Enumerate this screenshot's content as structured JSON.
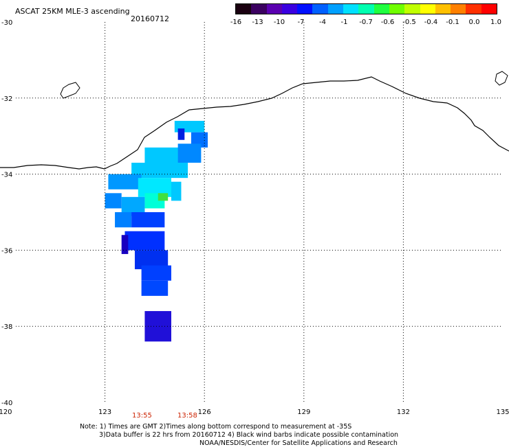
{
  "title": "ASCAT 25KM MLE-3 ascending",
  "date": "20160712",
  "colorbar": {
    "labels": [
      "-16",
      "-13",
      "-10",
      "-7",
      "-4",
      "-1",
      "-0.7",
      "-0.6",
      "-0.5",
      "-0.4",
      "-0.1",
      "0.0",
      "1.0"
    ],
    "colors": [
      "#1a0010",
      "#3b0060",
      "#5a00b0",
      "#3a00e0",
      "#0010ff",
      "#0060ff",
      "#00a0ff",
      "#00e0ff",
      "#00ffb0",
      "#20ff40",
      "#70ff00",
      "#c0ff00",
      "#ffff00",
      "#ffc000",
      "#ff8000",
      "#ff3000",
      "#ff0000"
    ]
  },
  "axes": {
    "lon_ticks": [
      "120",
      "123",
      "126",
      "129",
      "132",
      "135"
    ],
    "lat_ticks": [
      "-30",
      "-32",
      "-34",
      "-36",
      "-38",
      "-40"
    ]
  },
  "times": [
    "13:55",
    "13:58"
  ],
  "notes": [
    "Note: 1) Times are GMT 2)Times along bottom correspond to measurement at -35S",
    "3)Data buffer is 22 hrs from 20160712 4) Black wind barbs indicate possible contamination",
    "NOAA/NESDIS/Center for Satellite Applications and Research"
  ],
  "map_data": {
    "lon_range": [
      120,
      135
    ],
    "lat_range": [
      -40,
      -30
    ],
    "cells": [
      {
        "lon": 125.1,
        "lat": -32.6,
        "w": 0.9,
        "h": 0.3,
        "color": "#00c8ff"
      },
      {
        "lon": 125.6,
        "lat": -32.9,
        "w": 0.5,
        "h": 0.4,
        "color": "#0070ff"
      },
      {
        "lon": 125.2,
        "lat": -32.8,
        "w": 0.2,
        "h": 0.3,
        "color": "#0020e0"
      },
      {
        "lon": 124.2,
        "lat": -33.3,
        "w": 1.2,
        "h": 0.6,
        "color": "#00c8ff"
      },
      {
        "lon": 125.2,
        "lat": -33.2,
        "w": 0.7,
        "h": 0.5,
        "color": "#0088ff"
      },
      {
        "lon": 123.8,
        "lat": -33.7,
        "w": 1.7,
        "h": 0.4,
        "color": "#00c8ff"
      },
      {
        "lon": 123.1,
        "lat": -34.0,
        "w": 1.0,
        "h": 0.4,
        "color": "#0098ff"
      },
      {
        "lon": 124.0,
        "lat": -34.1,
        "w": 1.0,
        "h": 0.5,
        "color": "#00e8ff"
      },
      {
        "lon": 124.2,
        "lat": -34.5,
        "w": 0.6,
        "h": 0.4,
        "color": "#00ffd8"
      },
      {
        "lon": 124.6,
        "lat": -34.5,
        "w": 0.3,
        "h": 0.2,
        "color": "#40e040"
      },
      {
        "lon": 123.0,
        "lat": -34.5,
        "w": 0.5,
        "h": 0.4,
        "color": "#0088ff"
      },
      {
        "lon": 123.5,
        "lat": -34.6,
        "w": 0.7,
        "h": 0.5,
        "color": "#00a8ff"
      },
      {
        "lon": 125.0,
        "lat": -34.2,
        "w": 0.3,
        "h": 0.5,
        "color": "#00c8ff"
      },
      {
        "lon": 123.3,
        "lat": -35.0,
        "w": 0.5,
        "h": 0.4,
        "color": "#0080ff"
      },
      {
        "lon": 123.8,
        "lat": -35.0,
        "w": 1.0,
        "h": 0.4,
        "color": "#0040ff"
      },
      {
        "lon": 123.6,
        "lat": -35.5,
        "w": 1.2,
        "h": 0.5,
        "color": "#0030ff"
      },
      {
        "lon": 123.5,
        "lat": -35.6,
        "w": 0.2,
        "h": 0.5,
        "color": "#1800c0"
      },
      {
        "lon": 123.9,
        "lat": -36.0,
        "w": 1.0,
        "h": 0.5,
        "color": "#0030f0"
      },
      {
        "lon": 124.1,
        "lat": -36.4,
        "w": 0.9,
        "h": 0.4,
        "color": "#0040ff"
      },
      {
        "lon": 124.1,
        "lat": -36.8,
        "w": 0.8,
        "h": 0.4,
        "color": "#0048ff"
      },
      {
        "lon": 124.2,
        "lat": -37.6,
        "w": 0.8,
        "h": 0.8,
        "color": "#2010d8"
      }
    ]
  }
}
